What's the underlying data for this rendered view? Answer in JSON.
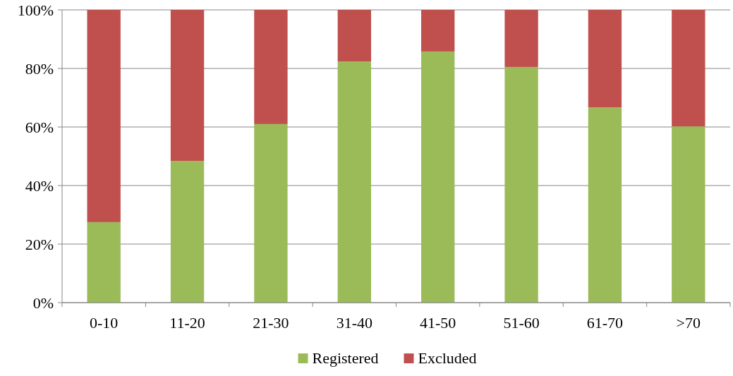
{
  "chart_data": {
    "type": "bar",
    "stacked": true,
    "categories": [
      "0-10",
      "11-20",
      "21-30",
      "31-40",
      "41-50",
      "51-60",
      "61-70",
      ">70"
    ],
    "series": [
      {
        "name": "Registered",
        "color": "#9bbb59",
        "values": [
          27.5,
          48.4,
          61,
          82.4,
          85.8,
          80.5,
          66.7,
          60.2
        ]
      },
      {
        "name": "Excluded",
        "color": "#c0504d",
        "values": [
          72.5,
          51.6,
          39,
          17.6,
          14.2,
          19.5,
          33.3,
          39.8
        ]
      }
    ],
    "ylim": [
      0,
      100
    ],
    "yticks": [
      {
        "value": 0,
        "label": "0%"
      },
      {
        "value": 20,
        "label": "20%"
      },
      {
        "value": 40,
        "label": "40%"
      },
      {
        "value": 60,
        "label": "60%"
      },
      {
        "value": 80,
        "label": "80%"
      },
      {
        "value": 100,
        "label": "100%"
      }
    ],
    "grid": "y",
    "legend": "bottom"
  }
}
